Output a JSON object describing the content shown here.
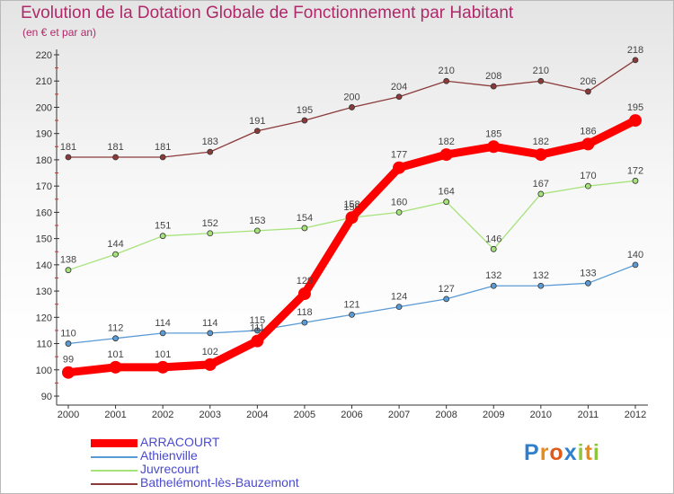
{
  "title": "Evolution de la Dotation Globale de Fonctionnement par Habitant",
  "subtitle": "(en € et par an)",
  "logo": {
    "text": "Proxiti",
    "letters": [
      "P",
      "r",
      "o",
      "x",
      "i",
      "t",
      "i"
    ]
  },
  "colors": {
    "ARRACOURT": "#ff0000",
    "Athienville": "#5b9bd5",
    "Juvrecourt": "#a6e27a",
    "Bathelemont": "#8b3a3a",
    "axis": "#333333",
    "tick_label": "#333333",
    "grid": "#cccccc",
    "data_label": "#444444",
    "legend_text": "#4a4ad0",
    "title": "#b0286a"
  },
  "chart_data": {
    "type": "line",
    "title": "Evolution de la Dotation Globale de Fonctionnement par Habitant",
    "subtitle": "(en € et par an)",
    "xlabel": "",
    "ylabel": "",
    "categories": [
      "2000",
      "2001",
      "2002",
      "2003",
      "2004",
      "2005",
      "2006",
      "2007",
      "2008",
      "2009",
      "2010",
      "2011",
      "2012"
    ],
    "ylim": [
      90,
      220
    ],
    "yticks": [
      90,
      100,
      110,
      120,
      130,
      140,
      150,
      160,
      170,
      180,
      190,
      200,
      210,
      220
    ],
    "grid": false,
    "legend_position": "bottom-left",
    "series": [
      {
        "key": "Athienville",
        "name": "Athienville",
        "values": [
          110,
          112,
          114,
          114,
          115,
          118,
          121,
          124,
          127,
          132,
          132,
          133,
          140
        ],
        "labels": [
          "110",
          "112",
          "114",
          "114",
          "115",
          "118",
          "121",
          "124",
          "127",
          "132",
          "132",
          "133",
          "140"
        ]
      },
      {
        "key": "Juvrecourt",
        "name": "Juvrecourt",
        "values": [
          138,
          144,
          151,
          152,
          153,
          154,
          158,
          160,
          164,
          146,
          167,
          170,
          172
        ],
        "labels": [
          "138",
          "144",
          "151",
          "152",
          "153",
          "154",
          "158",
          "160",
          "164",
          "146",
          "167",
          "170",
          "172"
        ]
      },
      {
        "key": "Bathelemont",
        "name": "Bathelémont-lès-Bauzemont",
        "values": [
          181,
          181,
          181,
          183,
          191,
          195,
          200,
          204,
          210,
          208,
          210,
          206,
          218
        ],
        "labels": [
          "181",
          "181",
          "181",
          "183",
          "191",
          "195",
          "200",
          "204",
          "210",
          "208",
          "210",
          "206",
          "218"
        ]
      },
      {
        "key": "ARRACOURT",
        "name": "ARRACOURT",
        "values": [
          99,
          101,
          101,
          102,
          111,
          129,
          158,
          177,
          182,
          185,
          182,
          186,
          195
        ],
        "labels": [
          "99",
          "101",
          "101",
          "102",
          "111",
          "129",
          "158",
          "177",
          "182",
          "185",
          "182",
          "186",
          "195"
        ]
      }
    ],
    "legend_order": [
      "ARRACOURT",
      "Athienville",
      "Juvrecourt",
      "Bathelemont"
    ]
  }
}
